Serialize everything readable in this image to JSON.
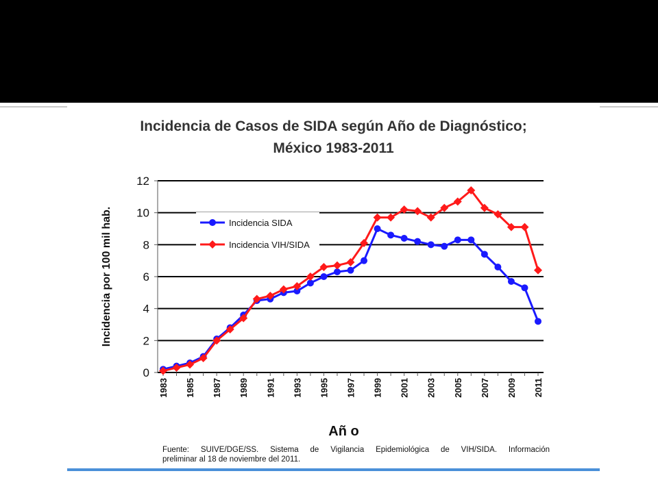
{
  "chart_data": {
    "type": "line",
    "title_line1": "Incidencia de Casos de SIDA según Año de Diagnóstico;",
    "title_line2": "México 1983-2011",
    "xlabel": "Añ o",
    "ylabel": "Incidencia por 100 mil hab.",
    "ylim": [
      0,
      12
    ],
    "yticks": [
      0,
      2,
      4,
      6,
      8,
      10,
      12
    ],
    "xlim": [
      1983,
      2011
    ],
    "xtick_labels": [
      "1983",
      "1985",
      "1987",
      "1989",
      "1991",
      "1993",
      "1995",
      "1997",
      "1999",
      "2001",
      "2003",
      "2005",
      "2007",
      "2009",
      "2011"
    ],
    "grid": "horizontal",
    "legend_position": "upper-left",
    "x": [
      1983,
      1984,
      1985,
      1986,
      1987,
      1988,
      1989,
      1990,
      1991,
      1992,
      1993,
      1994,
      1995,
      1996,
      1997,
      1998,
      1999,
      2000,
      2001,
      2002,
      2003,
      2004,
      2005,
      2006,
      2007,
      2008,
      2009,
      2010,
      2011
    ],
    "series": [
      {
        "name": "Incidencia SIDA",
        "color": "#1a1aff",
        "marker": "circle",
        "values": [
          0.2,
          0.4,
          0.6,
          1.0,
          2.1,
          2.8,
          3.6,
          4.5,
          4.6,
          5.0,
          5.1,
          5.6,
          6.0,
          6.3,
          6.4,
          7.0,
          9.0,
          8.6,
          8.4,
          8.2,
          8.0,
          7.9,
          8.3,
          8.3,
          7.4,
          6.6,
          5.7,
          5.3,
          3.2
        ]
      },
      {
        "name": "Incidencia VIH/SIDA",
        "color": "#ff1a1a",
        "marker": "diamond",
        "values": [
          0.1,
          0.3,
          0.5,
          0.9,
          2.0,
          2.7,
          3.4,
          4.6,
          4.8,
          5.2,
          5.4,
          6.0,
          6.6,
          6.7,
          6.9,
          8.1,
          9.7,
          9.7,
          10.2,
          10.1,
          9.7,
          10.3,
          10.7,
          11.4,
          10.3,
          9.9,
          9.1,
          9.1,
          6.4
        ]
      }
    ]
  },
  "source_note": {
    "line1": "Fuente: SUIVE/DGE/SS. Sistema de Vigilancia Epidemiológica de VIH/SIDA. Información",
    "line2": "preliminar al 18 de noviembre del 2011."
  }
}
